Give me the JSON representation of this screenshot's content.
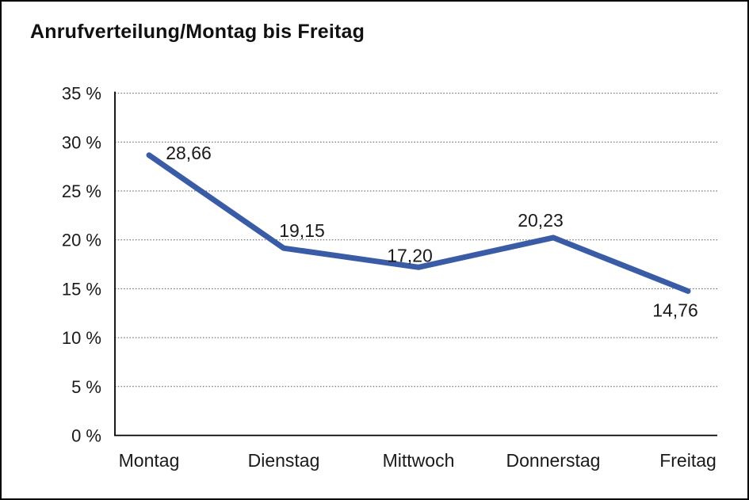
{
  "window": {
    "background_color": "#ffffff",
    "border_color": "#000000"
  },
  "chart_data": {
    "type": "line",
    "title": "Anrufverteilung/Montag bis Freitag",
    "categories": [
      "Montag",
      "Dienstag",
      "Mittwoch",
      "Donnerstag",
      "Freitag"
    ],
    "series": [
      {
        "name": "Anrufverteilung",
        "values": [
          28.66,
          19.15,
          17.2,
          20.23,
          14.76
        ]
      }
    ],
    "point_labels": [
      "28,66",
      "19,15",
      "17,20",
      "20,23",
      "14,76"
    ],
    "xlabel": "",
    "ylabel": "",
    "ylim": [
      0,
      35
    ],
    "y_tick_step": 5,
    "y_ticks": [
      "0 %",
      "5 %",
      "10 %",
      "15 %",
      "20 %",
      "25 %",
      "30 %",
      "35 %"
    ],
    "y_tick_values": [
      0,
      5,
      10,
      15,
      20,
      25,
      30,
      35
    ],
    "grid": "horizontal-dotted",
    "legend": "none",
    "colors": {
      "line": "#3A5CA6",
      "axis": "#000000",
      "grid": "#555555",
      "text": "#1a1a1a",
      "title": "#111111"
    }
  }
}
